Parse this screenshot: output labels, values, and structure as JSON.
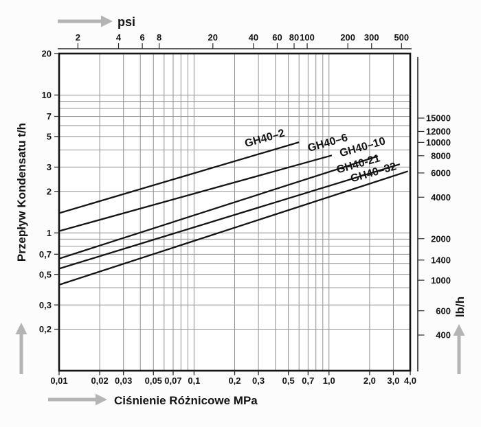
{
  "page": {
    "background": "#fcfcfc"
  },
  "colors": {
    "line": "#141414",
    "grid": "#8f8f8f",
    "axis": "#2a2a2a",
    "text": "#141414",
    "arrow": "#b4b4b4",
    "plot_bg": "#ffffff"
  },
  "chart_data": {
    "type": "line",
    "scale": "log-log",
    "title": "",
    "grid": {
      "show": true,
      "pattern": "log-minor-both-axes"
    },
    "legend": "labels-on-lines",
    "x_axis": {
      "label": "Ciśnienie Różnicowe MPa",
      "min": 0.01,
      "max": 4.0,
      "ticks": [
        0.01,
        0.02,
        0.03,
        0.05,
        0.07,
        0.1,
        0.2,
        0.3,
        0.5,
        0.7,
        1.0,
        2.0,
        3.0,
        4.0
      ],
      "tick_labels": [
        "0,01",
        "0,02",
        "0,03",
        "0,05",
        "0,07",
        "0,1",
        "0,2",
        "0,3",
        "0,5",
        "0,7",
        "1,0",
        "2,0",
        "3,0",
        "4,0"
      ]
    },
    "y_axis": {
      "label": "Przepływ Kondensatu t/h",
      "min": 0.1,
      "max": 20,
      "ticks": [
        20,
        10,
        7,
        5,
        3,
        2,
        1,
        0.7,
        0.5,
        0.3,
        0.2
      ],
      "tick_labels": [
        "20",
        "10",
        "7",
        "5",
        "3",
        "2",
        "1",
        "0,7",
        "0,5",
        "0,3",
        "0,2"
      ]
    },
    "top_axis": {
      "label": "psi",
      "psi_per_mpa": 145.04,
      "ticks": [
        2,
        4,
        6,
        8,
        20,
        40,
        60,
        80,
        100,
        200,
        300,
        500
      ],
      "tick_labels": [
        "2",
        "4",
        "6",
        "8",
        "20",
        "40",
        "60",
        "80",
        "100",
        "200",
        "300",
        "500"
      ]
    },
    "right_axis": {
      "label": "lb/h",
      "lb_per_t": 2204.6,
      "ticks": [
        15000,
        12000,
        10000,
        8000,
        6000,
        4000,
        2000,
        1400,
        1000,
        600,
        400
      ],
      "tick_labels": [
        "15000",
        "12000",
        "10000",
        "8000",
        "6000",
        "4000",
        "2000",
        "1400",
        "1000",
        "600",
        "400"
      ]
    },
    "series": [
      {
        "name": "GH40–2",
        "points": [
          [
            0.01,
            1.39
          ],
          [
            0.6,
            4.55
          ]
        ]
      },
      {
        "name": "GH40–6",
        "points": [
          [
            0.01,
            1.03
          ],
          [
            1.05,
            3.65
          ]
        ]
      },
      {
        "name": "GH40–10",
        "points": [
          [
            0.01,
            0.65
          ],
          [
            2.3,
            3.6
          ]
        ]
      },
      {
        "name": "GH40-21",
        "points": [
          [
            0.01,
            0.55
          ],
          [
            3.35,
            3.15
          ]
        ]
      },
      {
        "name": "GH40–32",
        "points": [
          [
            0.01,
            0.42
          ],
          [
            3.85,
            2.8
          ]
        ]
      }
    ]
  }
}
